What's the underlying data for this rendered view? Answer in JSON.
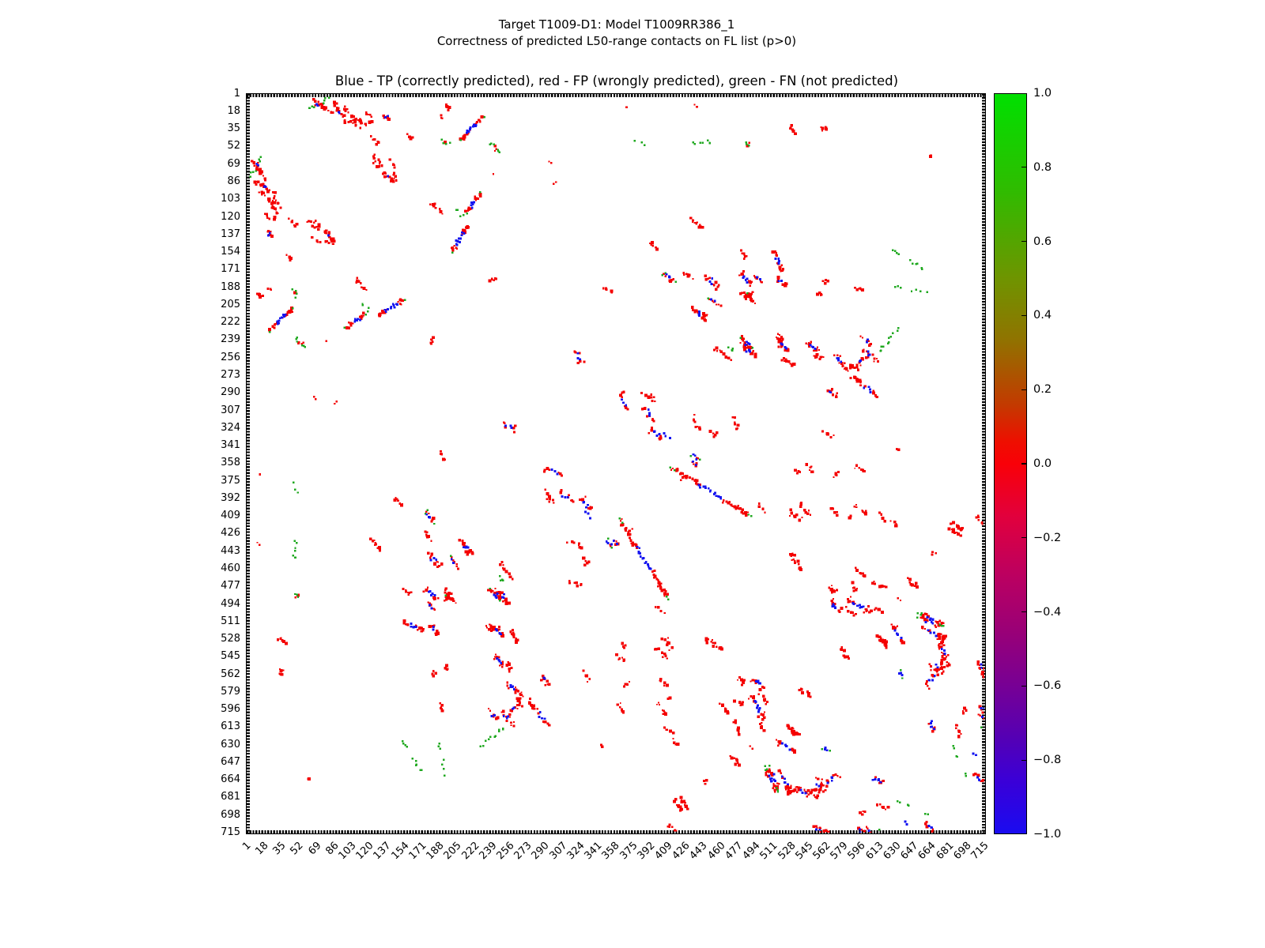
{
  "suptitle": {
    "line1": "Target T1009-D1: Model T1009RR386_1",
    "line2": "Correctness of predicted L50-range contacts on FL list (p>0)"
  },
  "axes_title": "Blue - TP (correctly predicted), red - FP (wrongly predicted), green - FN (not predicted)",
  "colorbar": {
    "tick_labels": [
      "1.0",
      "0.8",
      "0.6",
      "0.4",
      "0.2",
      "0.0",
      "−0.2",
      "−0.4",
      "−0.6",
      "−0.8",
      "−1.0"
    ],
    "gradient_stops": [
      [
        0.0,
        "#00e000"
      ],
      [
        0.05,
        "#13d200"
      ],
      [
        0.13,
        "#2fbc00"
      ],
      [
        0.25,
        "#6f9400"
      ],
      [
        0.33,
        "#8f7400"
      ],
      [
        0.42,
        "#c33a00"
      ],
      [
        0.47,
        "#ee0f00"
      ],
      [
        0.5,
        "#f90008"
      ],
      [
        0.57,
        "#e2003c"
      ],
      [
        0.65,
        "#bc0060"
      ],
      [
        0.73,
        "#980078"
      ],
      [
        0.79,
        "#7c0090"
      ],
      [
        0.87,
        "#5500b4"
      ],
      [
        0.93,
        "#3a00d8"
      ],
      [
        1.0,
        "#1a0bf0"
      ]
    ]
  },
  "chart_data": {
    "type": "scatter",
    "title": "Correctness of predicted L50-range contacts, target T1009-D1 model T1009RR386_1",
    "axis_min": 1,
    "axis_max": 715,
    "x_ticks": [
      1,
      18,
      35,
      52,
      69,
      86,
      103,
      120,
      137,
      154,
      171,
      188,
      205,
      222,
      239,
      256,
      273,
      290,
      307,
      324,
      341,
      358,
      375,
      392,
      409,
      426,
      443,
      460,
      477,
      494,
      511,
      528,
      545,
      562,
      579,
      596,
      613,
      630,
      647,
      664,
      681,
      698,
      715
    ],
    "y_ticks": [
      1,
      18,
      35,
      52,
      69,
      86,
      103,
      120,
      137,
      154,
      171,
      188,
      205,
      222,
      239,
      256,
      273,
      290,
      307,
      324,
      341,
      358,
      375,
      392,
      409,
      426,
      443,
      460,
      477,
      494,
      511,
      528,
      545,
      562,
      579,
      596,
      613,
      630,
      647,
      664,
      681,
      698,
      715
    ],
    "classes": [
      {
        "name": "TP",
        "label": "correctly predicted",
        "color": "#1414f0"
      },
      {
        "name": "FP",
        "label": "wrongly predicted",
        "color": "#f40000"
      },
      {
        "name": "FN",
        "label": "not predicted",
        "color": "#1fa81f"
      }
    ],
    "symmetric": true,
    "cluster_format": [
      "x1",
      "y1",
      "x2",
      "y2",
      "n_FP_red",
      "n_TP_blue",
      "n_FN_green"
    ],
    "clusters": [
      [
        60,
        16,
        80,
        5,
        3,
        2,
        8
      ],
      [
        66,
        6,
        84,
        20,
        10,
        0,
        0
      ],
      [
        84,
        8,
        99,
        30,
        12,
        2,
        0
      ],
      [
        96,
        14,
        110,
        33,
        10,
        0,
        0
      ],
      [
        104,
        22,
        117,
        30,
        8,
        0,
        0
      ],
      [
        118,
        16,
        121,
        30,
        6,
        0,
        0
      ],
      [
        134,
        20,
        140,
        26,
        4,
        2,
        0
      ],
      [
        124,
        60,
        130,
        72,
        7,
        0,
        0
      ],
      [
        133,
        76,
        144,
        87,
        7,
        1,
        0
      ],
      [
        122,
        42,
        128,
        50,
        5,
        0,
        0
      ],
      [
        140,
        63,
        147,
        87,
        6,
        0,
        0
      ],
      [
        156,
        40,
        162,
        44,
        3,
        0,
        0
      ],
      [
        193,
        12,
        199,
        15,
        3,
        0,
        0
      ],
      [
        179,
        105,
        189,
        116,
        6,
        0,
        0
      ],
      [
        190,
        45,
        198,
        50,
        1,
        0,
        4
      ],
      [
        207,
        46,
        231,
        22,
        14,
        9,
        2
      ],
      [
        238,
        47,
        245,
        58,
        2,
        0,
        6
      ],
      [
        212,
        118,
        228,
        96,
        10,
        5,
        3
      ],
      [
        203,
        110,
        208,
        119,
        0,
        0,
        3
      ],
      [
        198,
        154,
        217,
        127,
        10,
        10,
        1
      ],
      [
        237,
        180,
        243,
        180,
        5,
        0,
        0
      ],
      [
        320,
        248,
        327,
        262,
        6,
        3,
        0
      ],
      [
        348,
        188,
        350,
        190,
        2,
        0,
        0
      ],
      [
        297,
        87,
        299,
        89,
        1,
        0,
        0
      ],
      [
        355,
        190,
        356,
        192,
        1,
        0,
        0
      ],
      [
        189,
        21,
        191,
        23,
        2,
        0,
        0
      ],
      [
        240,
        76,
        242,
        78,
        1,
        0,
        0
      ],
      [
        294,
        65,
        296,
        67,
        1,
        0,
        0
      ],
      [
        436,
        11,
        438,
        13,
        1,
        0,
        0
      ],
      [
        555,
        31,
        566,
        34,
        4,
        0,
        0
      ],
      [
        525,
        33,
        533,
        36,
        3,
        0,
        0
      ],
      [
        440,
        47,
        453,
        47,
        0,
        0,
        5
      ],
      [
        483,
        48,
        490,
        51,
        1,
        0,
        3
      ],
      [
        663,
        60,
        665,
        62,
        1,
        0,
        0
      ],
      [
        434,
        123,
        443,
        131,
        7,
        0,
        0
      ],
      [
        392,
        144,
        398,
        153,
        5,
        0,
        0
      ],
      [
        512,
        152,
        521,
        174,
        11,
        5,
        0
      ],
      [
        404,
        174,
        416,
        183,
        4,
        4,
        3
      ],
      [
        425,
        176,
        433,
        179,
        4,
        0,
        0
      ],
      [
        446,
        178,
        459,
        187,
        7,
        3,
        0
      ],
      [
        481,
        173,
        489,
        186,
        6,
        5,
        0
      ],
      [
        493,
        177,
        501,
        183,
        4,
        2,
        0
      ],
      [
        515,
        179,
        524,
        187,
        5,
        2,
        0
      ],
      [
        482,
        192,
        491,
        201,
        7,
        0,
        0
      ],
      [
        559,
        181,
        565,
        184,
        3,
        0,
        0
      ],
      [
        553,
        193,
        559,
        196,
        3,
        0,
        0
      ],
      [
        627,
        151,
        636,
        156,
        0,
        0,
        4
      ],
      [
        642,
        161,
        658,
        170,
        0,
        0,
        6
      ],
      [
        630,
        186,
        637,
        188,
        0,
        0,
        3
      ],
      [
        645,
        191,
        662,
        193,
        0,
        0,
        4
      ],
      [
        593,
        189,
        600,
        191,
        4,
        0,
        0
      ],
      [
        434,
        208,
        447,
        218,
        9,
        4,
        0
      ],
      [
        449,
        199,
        459,
        205,
        4,
        2,
        1
      ],
      [
        480,
        236,
        493,
        248,
        8,
        5,
        2
      ],
      [
        469,
        244,
        473,
        251,
        0,
        0,
        4
      ],
      [
        517,
        234,
        521,
        248,
        9,
        0,
        0
      ],
      [
        520,
        256,
        533,
        264,
        6,
        0,
        0
      ],
      [
        455,
        246,
        470,
        256,
        7,
        0,
        0
      ],
      [
        571,
        253,
        581,
        263,
        5,
        6,
        0
      ],
      [
        581,
        265,
        594,
        266,
        8,
        0,
        0
      ],
      [
        594,
        265,
        601,
        254,
        5,
        2,
        0
      ],
      [
        613,
        251,
        634,
        228,
        0,
        0,
        11
      ],
      [
        600,
        249,
        612,
        257,
        5,
        3,
        0
      ],
      [
        550,
        252,
        560,
        258,
        4,
        0,
        0
      ],
      [
        599,
        237,
        607,
        243,
        4,
        2,
        0
      ],
      [
        587,
        274,
        598,
        280,
        8,
        0,
        0
      ],
      [
        597,
        282,
        613,
        292,
        5,
        4,
        0
      ],
      [
        563,
        288,
        574,
        294,
        5,
        2,
        0
      ],
      [
        363,
        290,
        370,
        307,
        6,
        3,
        0
      ],
      [
        384,
        289,
        396,
        300,
        7,
        0,
        0
      ],
      [
        386,
        303,
        396,
        318,
        5,
        3,
        0
      ],
      [
        393,
        324,
        403,
        336,
        6,
        4,
        0
      ],
      [
        405,
        328,
        412,
        336,
        0,
        3,
        0
      ],
      [
        449,
        328,
        456,
        333,
        4,
        0,
        0
      ],
      [
        472,
        314,
        478,
        327,
        4,
        0,
        0
      ],
      [
        434,
        310,
        440,
        326,
        5,
        0,
        0
      ],
      [
        560,
        328,
        568,
        333,
        4,
        0,
        0
      ],
      [
        430,
        350,
        441,
        355,
        1,
        3,
        2
      ],
      [
        375,
        47,
        391,
        49,
        0,
        0,
        3
      ],
      [
        432,
        48,
        437,
        51,
        0,
        0,
        2
      ],
      [
        370,
        12,
        371,
        14,
        1,
        0,
        0
      ],
      [
        480,
        155,
        484,
        160,
        4,
        0,
        0
      ],
      [
        486,
        193,
        492,
        200,
        6,
        0,
        1
      ],
      [
        585,
        410,
        587,
        413,
        2,
        0,
        0
      ],
      [
        625,
        412,
        632,
        419,
        3,
        0,
        0
      ],
      [
        682,
        422,
        693,
        427,
        8,
        0,
        0
      ],
      [
        571,
        366,
        575,
        370,
        3,
        0,
        0
      ],
      [
        532,
        363,
        537,
        371,
        3,
        0,
        0
      ],
      [
        526,
        402,
        537,
        413,
        5,
        0,
        0
      ],
      [
        567,
        402,
        575,
        408,
        5,
        0,
        0
      ],
      [
        666,
        445,
        670,
        448,
        2,
        0,
        0
      ],
      [
        591,
        463,
        603,
        467,
        4,
        0,
        0
      ],
      [
        608,
        475,
        621,
        478,
        5,
        0,
        0
      ],
      [
        565,
        480,
        573,
        483,
        4,
        0,
        0
      ],
      [
        412,
        362,
        490,
        410,
        30,
        14,
        4
      ],
      [
        434,
        357,
        438,
        360,
        3,
        2,
        0
      ],
      [
        496,
        398,
        503,
        406,
        4,
        0,
        0
      ],
      [
        536,
        397,
        549,
        409,
        6,
        0,
        0
      ],
      [
        589,
        398,
        604,
        409,
        5,
        0,
        0
      ],
      [
        613,
        406,
        620,
        412,
        3,
        0,
        0
      ],
      [
        545,
        360,
        551,
        368,
        4,
        0,
        0
      ],
      [
        591,
        359,
        601,
        368,
        4,
        0,
        0
      ],
      [
        528,
        444,
        538,
        461,
        9,
        0,
        0
      ],
      [
        587,
        475,
        594,
        483,
        5,
        0,
        0
      ],
      [
        582,
        490,
        607,
        503,
        10,
        8,
        0
      ],
      [
        567,
        492,
        575,
        503,
        4,
        5,
        0
      ],
      [
        577,
        497,
        592,
        505,
        6,
        0,
        0
      ],
      [
        610,
        499,
        618,
        503,
        4,
        0,
        0
      ],
      [
        642,
        472,
        653,
        478,
        5,
        0,
        0
      ],
      [
        613,
        524,
        623,
        538,
        10,
        0,
        0
      ],
      [
        656,
        518,
        680,
        528,
        9,
        5,
        0
      ],
      [
        651,
        506,
        677,
        518,
        6,
        4,
        4
      ],
      [
        673,
        526,
        681,
        555,
        10,
        3,
        0
      ],
      [
        668,
        552,
        671,
        558,
        1,
        2,
        0
      ],
      [
        662,
        554,
        668,
        561,
        4,
        0,
        0
      ],
      [
        685,
        415,
        696,
        424,
        7,
        0,
        0
      ],
      [
        709,
        410,
        716,
        418,
        5,
        0,
        0
      ],
      [
        712,
        551,
        716,
        560,
        4,
        2,
        0
      ],
      [
        713,
        594,
        716,
        600,
        2,
        2,
        0
      ],
      [
        627,
        516,
        638,
        532,
        6,
        5,
        0
      ],
      [
        614,
        529,
        623,
        532,
        4,
        0,
        0
      ],
      [
        576,
        535,
        585,
        548,
        7,
        0,
        0
      ],
      [
        652,
        502,
        678,
        516,
        8,
        4,
        3
      ],
      [
        674,
        536,
        676,
        561,
        10,
        0,
        0
      ],
      [
        660,
        574,
        672,
        560,
        5,
        4,
        0
      ],
      [
        714,
        558,
        716,
        570,
        5,
        0,
        0
      ],
      [
        688,
        610,
        694,
        626,
        6,
        0,
        0
      ],
      [
        662,
        610,
        669,
        617,
        3,
        3,
        0
      ],
      [
        714,
        602,
        716,
        607,
        2,
        1,
        0
      ],
      [
        664,
        608,
        668,
        618,
        0,
        3,
        0
      ],
      [
        688,
        640,
        692,
        645,
        0,
        0,
        2
      ],
      [
        685,
        632,
        688,
        635,
        0,
        0,
        2
      ],
      [
        704,
        639,
        708,
        643,
        0,
        2,
        0
      ],
      [
        696,
        660,
        700,
        664,
        0,
        0,
        2
      ],
      [
        697,
        596,
        700,
        600,
        2,
        0,
        0
      ],
      [
        483,
        246,
        494,
        254,
        7,
        4,
        0
      ],
      [
        517,
        239,
        527,
        250,
        7,
        4,
        0
      ],
      [
        544,
        240,
        556,
        252,
        7,
        4,
        0
      ],
      [
        634,
        559,
        638,
        566,
        0,
        3,
        2
      ],
      [
        708,
        660,
        715,
        668,
        4,
        3,
        0
      ],
      [
        712,
        613,
        716,
        617,
        0,
        0,
        2
      ],
      [
        633,
        490,
        635,
        492,
        1,
        0,
        0
      ],
      [
        630,
        344,
        632,
        346,
        1,
        0,
        0
      ]
    ]
  }
}
